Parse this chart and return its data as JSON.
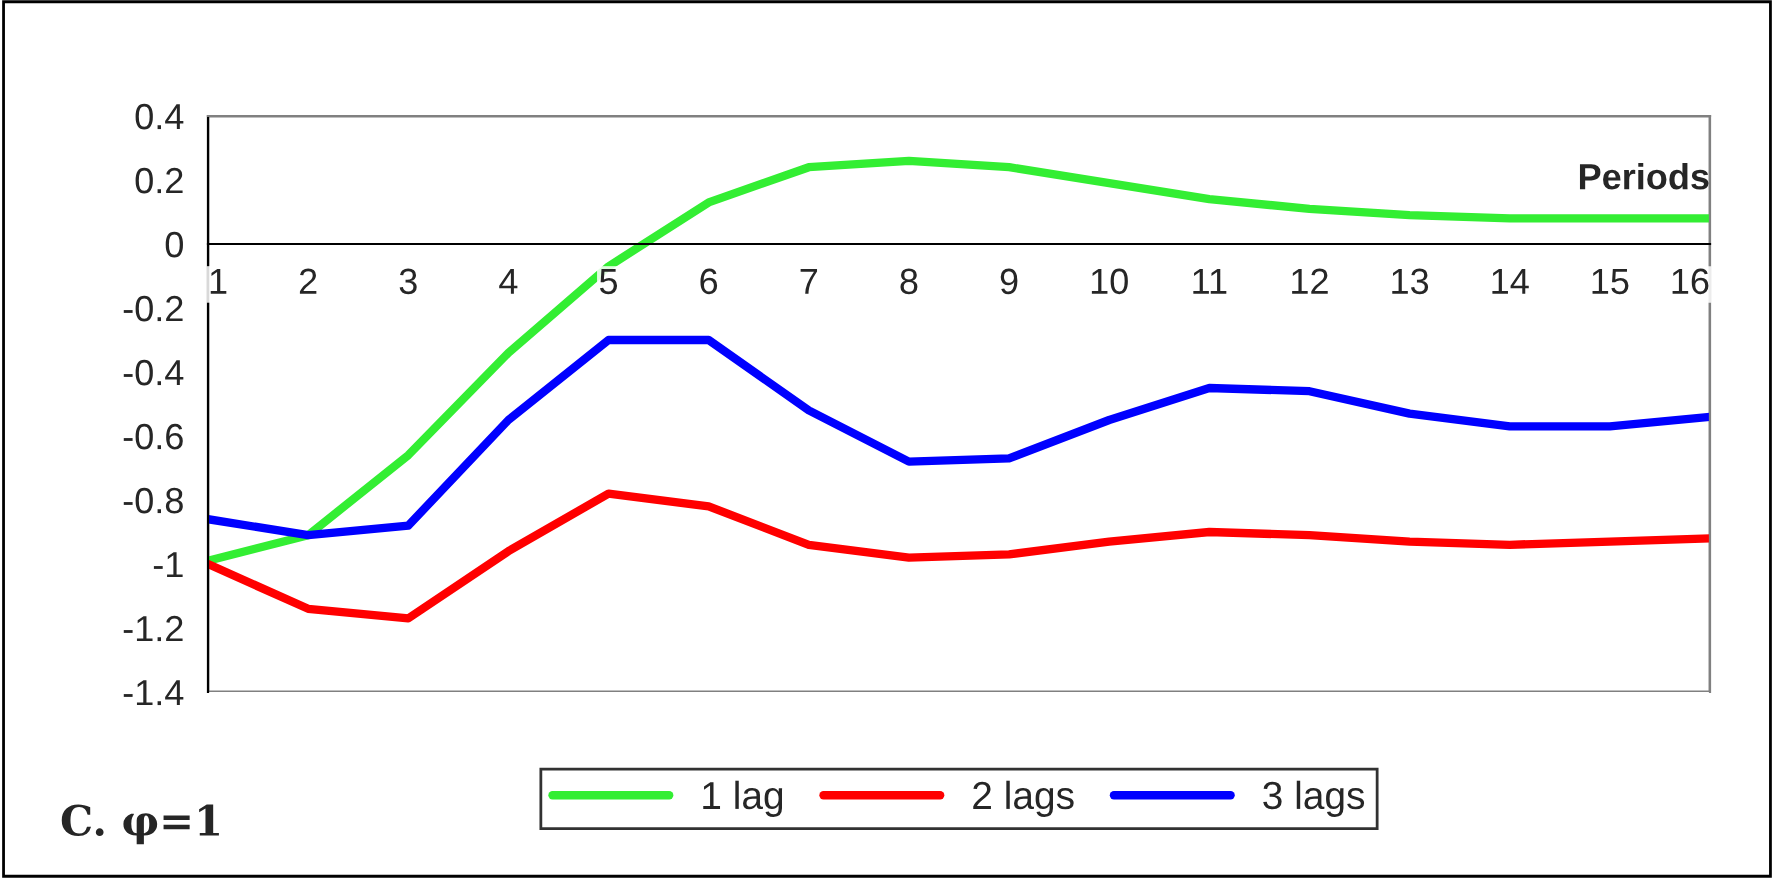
{
  "chart_data": {
    "type": "line",
    "xlabel": "Periods",
    "categories": [
      "1",
      "2",
      "3",
      "4",
      "5",
      "6",
      "7",
      "8",
      "9",
      "10",
      "11",
      "12",
      "13",
      "14",
      "15",
      "16"
    ],
    "series": [
      {
        "name": "1 lag",
        "color": "#33ee33",
        "values": [
          -0.99,
          -0.91,
          -0.66,
          -0.34,
          -0.07,
          0.13,
          0.24,
          0.26,
          0.24,
          0.19,
          0.14,
          0.11,
          0.09,
          0.08,
          0.08,
          0.08
        ]
      },
      {
        "name": "2 lags",
        "color": "#ff0000",
        "values": [
          -1.0,
          -1.14,
          -1.17,
          -0.96,
          -0.78,
          -0.82,
          -0.94,
          -0.98,
          -0.97,
          -0.93,
          -0.9,
          -0.91,
          -0.93,
          -0.94,
          -0.93,
          -0.92
        ]
      },
      {
        "name": "3 lags",
        "color": "#0000ff",
        "values": [
          -0.86,
          -0.91,
          -0.88,
          -0.55,
          -0.3,
          -0.3,
          -0.52,
          -0.68,
          -0.67,
          -0.55,
          -0.45,
          -0.46,
          -0.53,
          -0.57,
          -0.57,
          -0.54
        ]
      }
    ],
    "ylim": [
      -1.4,
      0.4
    ],
    "yticks": [
      0.4,
      0.2,
      0,
      {
        "value": -0.2,
        "label": "-0.2"
      },
      {
        "value": -0.4,
        "label": "-0.4"
      },
      {
        "value": -0.6,
        "label": "-0.6"
      },
      {
        "value": -0.8,
        "label": "-0.8"
      },
      {
        "value": -1,
        "label": "-1"
      },
      {
        "value": -1.2,
        "label": "-1.2"
      },
      {
        "value": -1.4,
        "label": "-1.4"
      }
    ],
    "grid": false,
    "legend": "bottom",
    "marker": "none",
    "line_style": "solid",
    "annotations": [
      "C. φ=1"
    ]
  }
}
